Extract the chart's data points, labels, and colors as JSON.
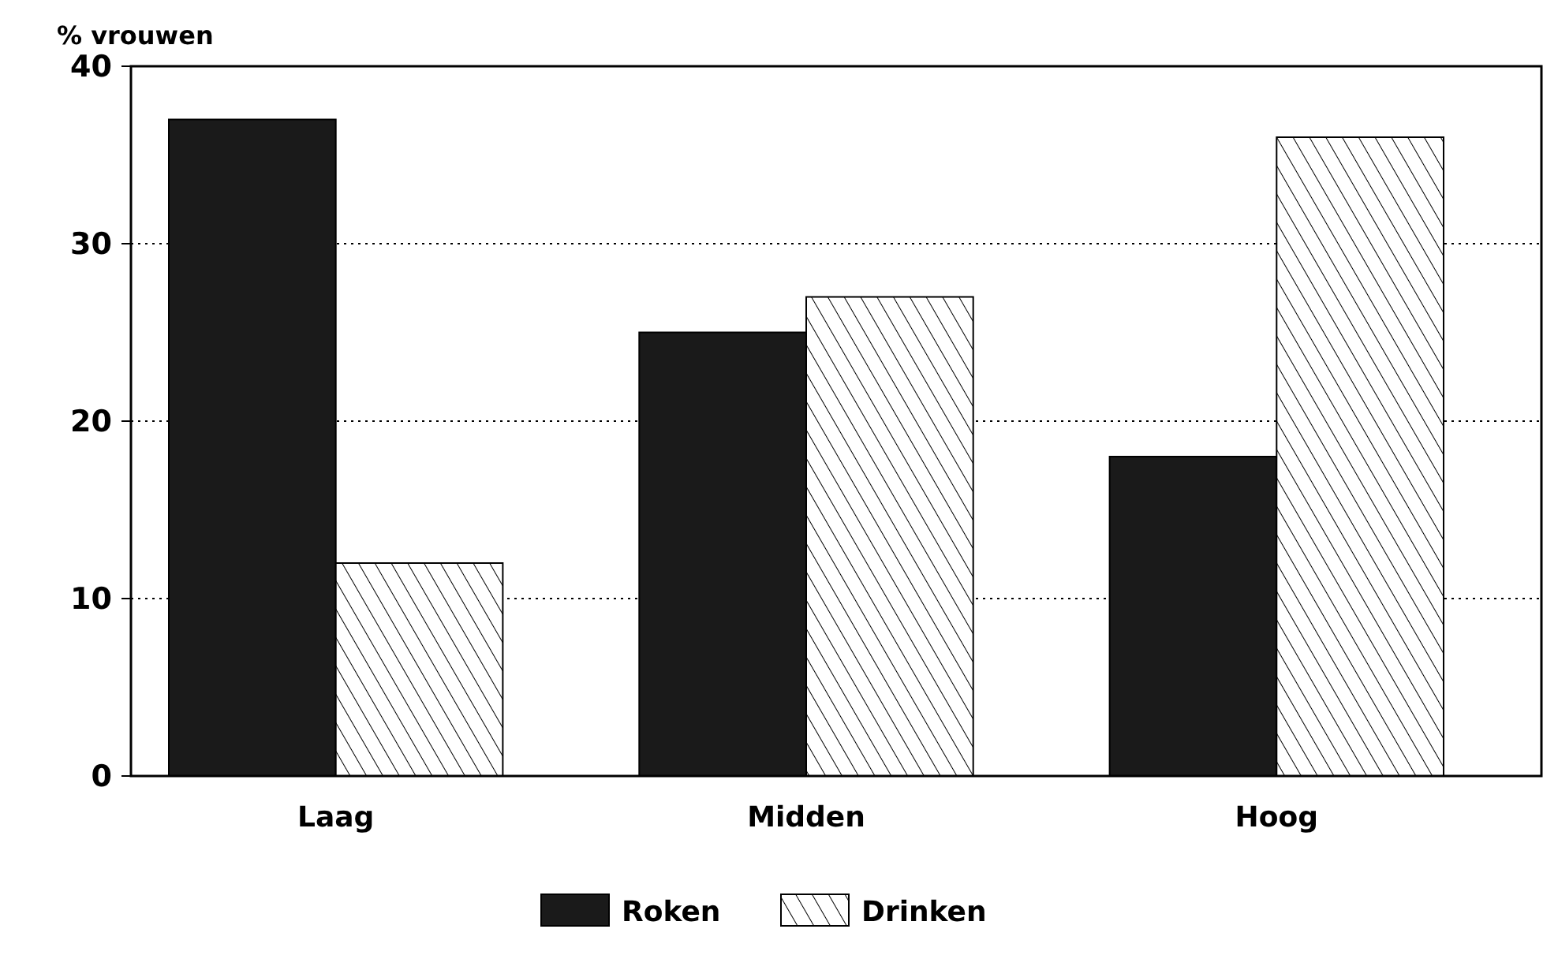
{
  "chart_data": {
    "type": "bar",
    "ylabel": "% vrouwen",
    "categories": [
      "Laag",
      "Midden",
      "Hoog"
    ],
    "series": [
      {
        "name": "Roken",
        "color": "#1a1a1a",
        "values": [
          37,
          25,
          18
        ]
      },
      {
        "name": "Drinken",
        "color": "#000000",
        "values": [
          12,
          27,
          36
        ]
      }
    ],
    "ylim": [
      0,
      40
    ],
    "yticks": [
      0,
      10,
      20,
      30,
      40
    ],
    "grid": "y",
    "legend": "bottom"
  }
}
